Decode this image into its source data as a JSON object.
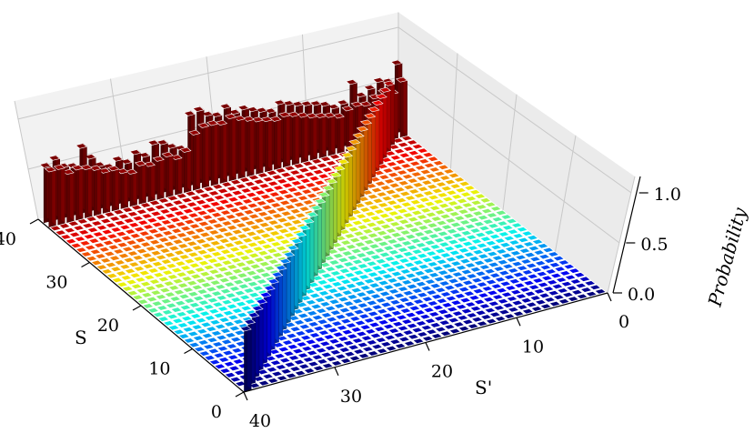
{
  "chart_data": {
    "type": "bar3d",
    "title": "",
    "xlabel": "S'",
    "ylabel": "S",
    "zlabel": "Probability",
    "xlim": [
      0,
      40
    ],
    "ylim": [
      0,
      40
    ],
    "zlim": [
      0,
      1.0
    ],
    "x_ticks": [
      0,
      10,
      20,
      30,
      40
    ],
    "y_ticks": [
      0,
      10,
      20,
      30,
      40
    ],
    "z_ticks": [
      "0.0",
      "0.5",
      "1.0"
    ],
    "grid": true,
    "colormap": "jet",
    "grid_size": 40,
    "description": "",
    "row_S40_values": [
      0.55,
      0.6,
      0.5,
      0.48,
      0.65,
      0.52,
      0.42,
      0.38,
      0.43,
      0.38,
      0.45,
      0.4,
      0.5,
      0.48,
      0.42,
      0.38,
      0.7,
      0.72,
      0.65,
      0.62,
      0.68,
      0.6,
      0.62,
      0.58,
      0.55,
      0.52,
      0.58,
      0.55,
      0.52,
      0.5,
      0.48,
      0.45,
      0.4,
      0.42,
      0.6,
      0.45,
      0.5,
      0.55,
      0.52,
      0.68
    ],
    "row_S39_values": [
      0.55,
      0.55,
      0.48,
      0.5,
      0.48,
      0.45,
      0.4,
      0.4,
      0.35,
      0.32,
      0.38,
      0.35,
      0.38,
      0.4,
      0.35,
      0.4,
      0.55,
      0.6,
      0.6,
      0.58,
      0.62,
      0.58,
      0.55,
      0.52,
      0.5,
      0.48,
      0.5,
      0.48,
      0.45,
      0.42,
      0.4,
      0.38,
      0.35,
      0.4,
      0.42,
      0.4,
      0.45,
      0.48,
      0.45,
      0.55
    ]
  }
}
